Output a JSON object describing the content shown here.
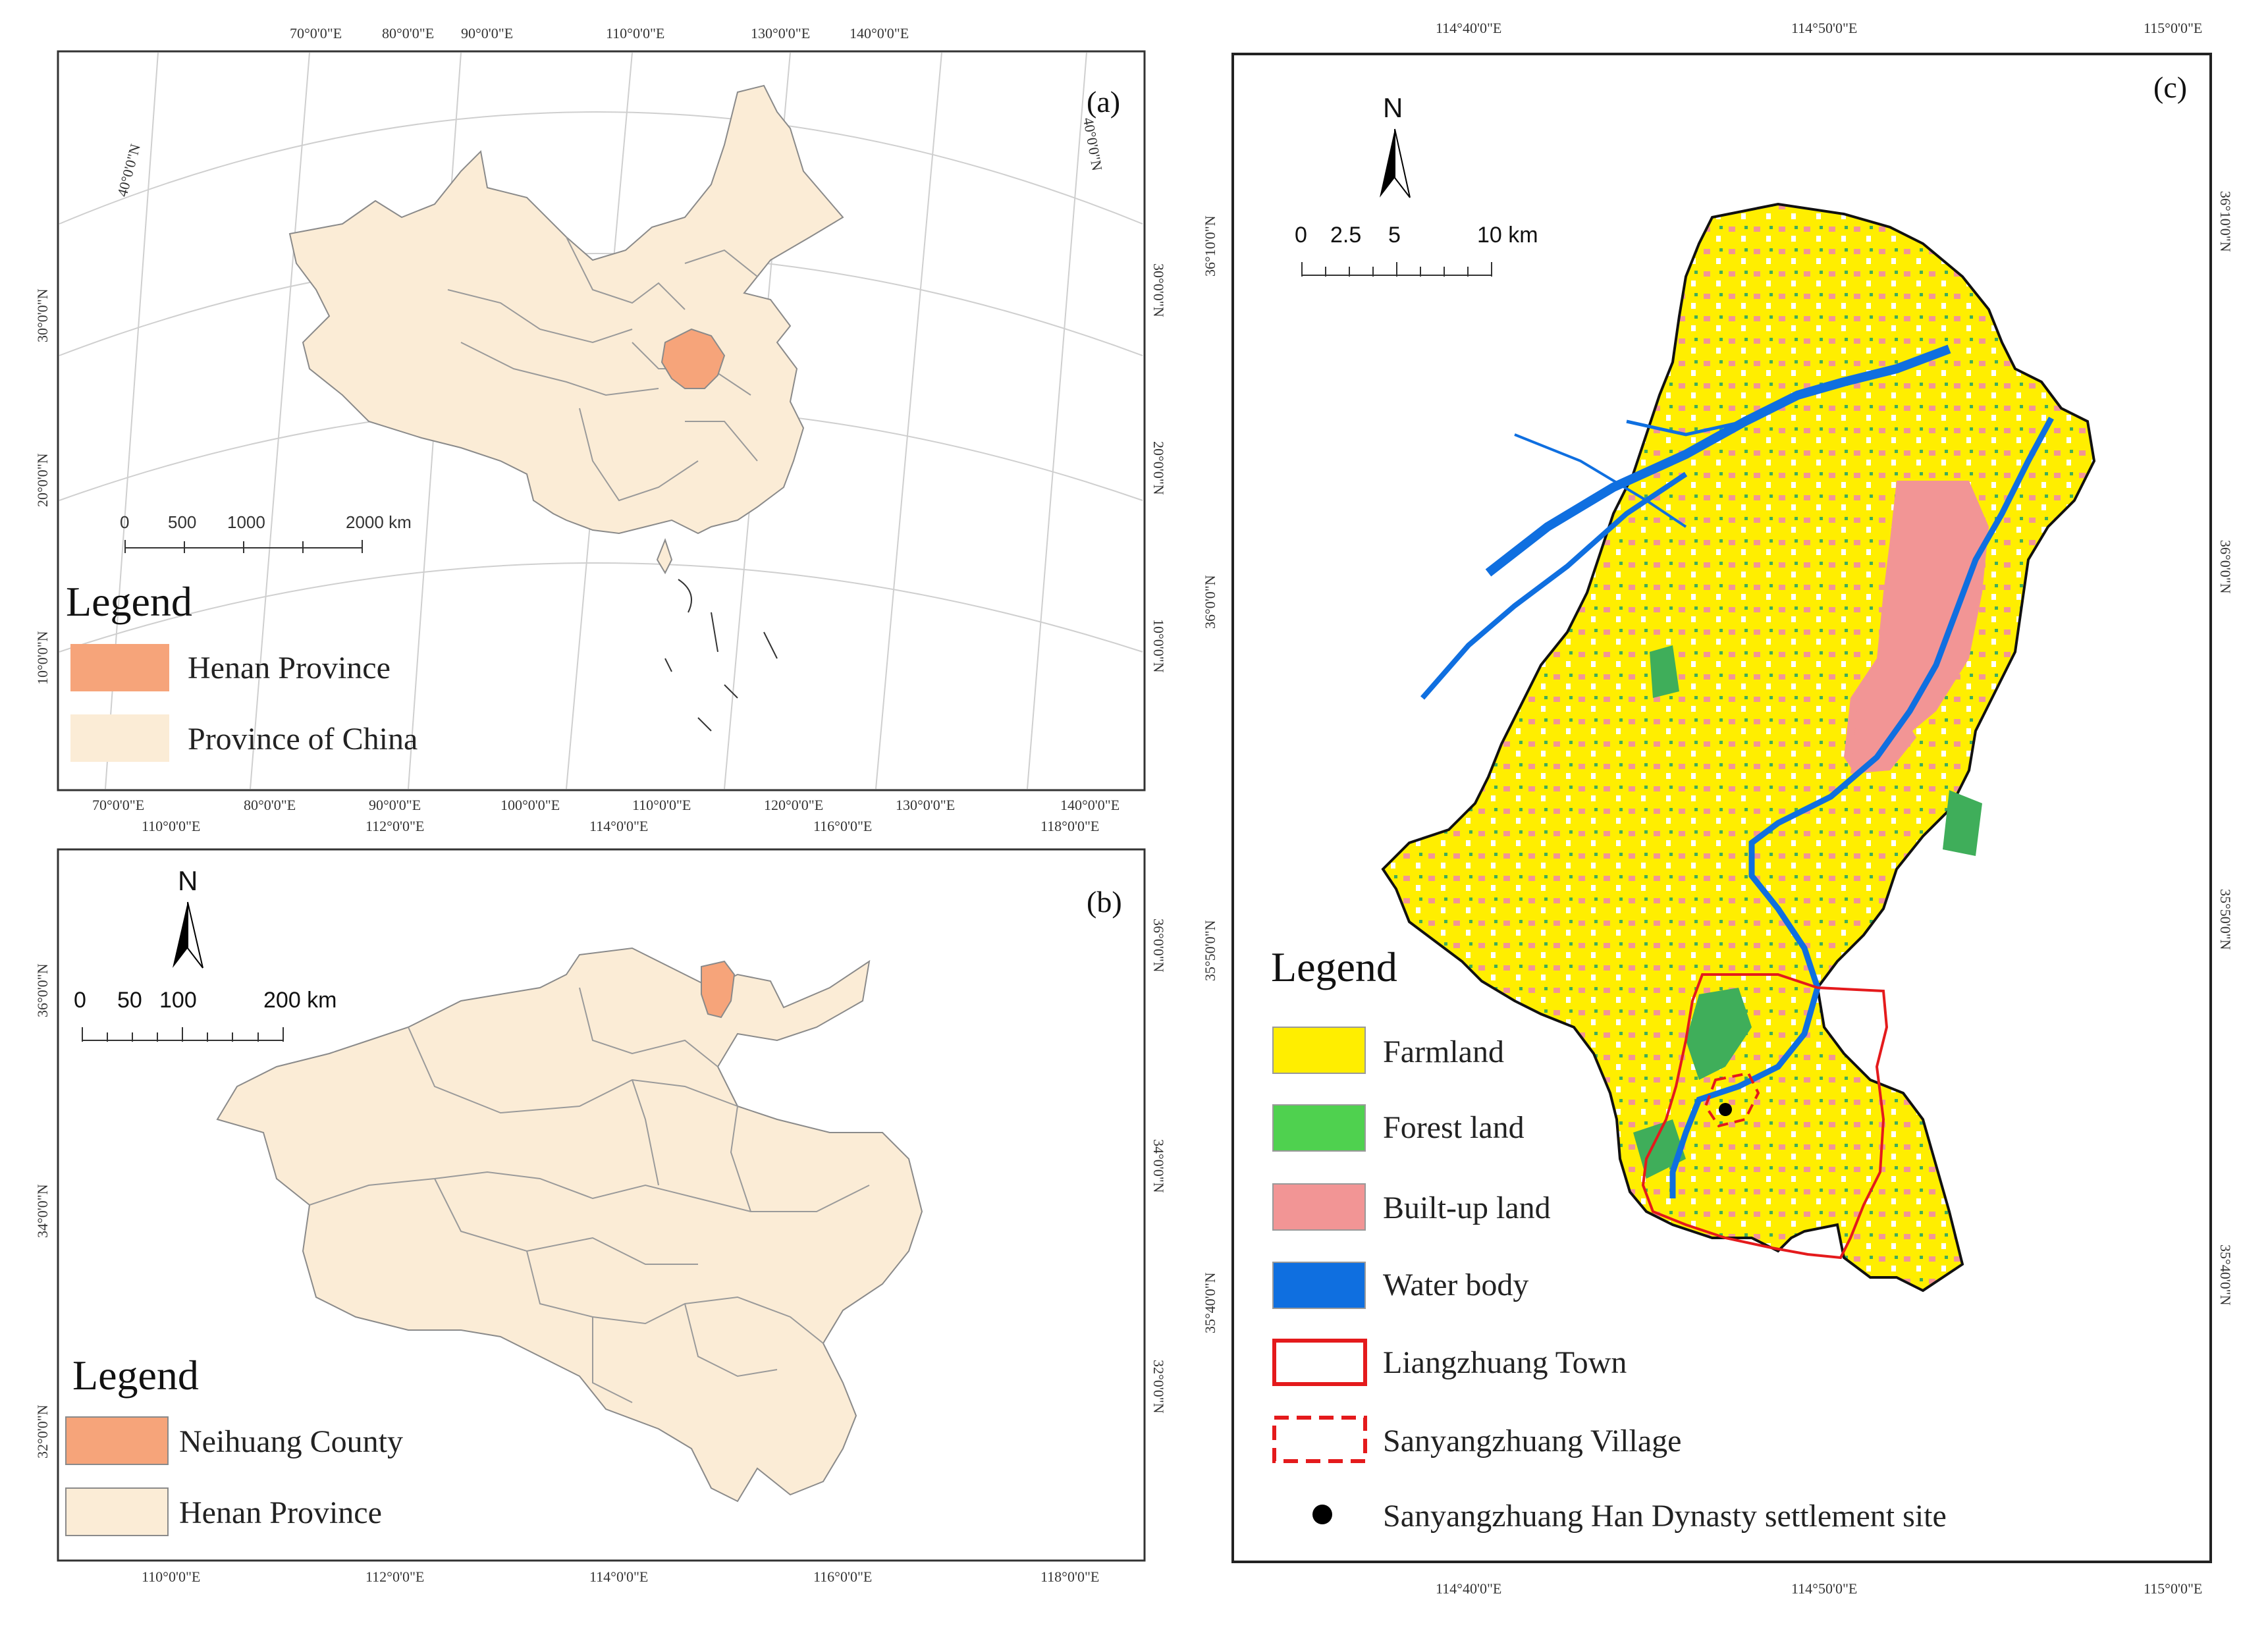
{
  "panels": {
    "a": {
      "label": "(a)",
      "top_lon_ticks": [
        "70°0'0\"E",
        "80°0'0\"E",
        "90°0'0\"E",
        "110°0'0\"E",
        "130°0'0\"E",
        "140°0'0\"E"
      ],
      "bottom_lon_ticks": [
        "70°0'0\"E",
        "80°0'0\"E",
        "90°0'0\"E",
        "100°0'0\"E",
        "110°0'0\"E",
        "120°0'0\"E",
        "130°0'0\"E",
        "140°0'0\"E"
      ],
      "left_lat_ticks": [
        "40°0'0\"N",
        "30°0'0\"N",
        "20°0'0\"N",
        "10°0'0\"N"
      ],
      "right_lat_ticks": [
        "40°0'0\"N",
        "30°0'0\"N",
        "20°0'0\"N",
        "10°0'0\"N"
      ],
      "scalebar": [
        "0",
        "500",
        "1000",
        "2000 km"
      ],
      "legend": {
        "title": "Legend",
        "items": [
          {
            "label": "Henan Province",
            "color": "#f6a47a"
          },
          {
            "label": "Province of China",
            "color": "#fbecd6"
          }
        ]
      }
    },
    "b": {
      "label": "(b)",
      "top_lon_ticks": [
        "110°0'0\"E",
        "112°0'0\"E",
        "114°0'0\"E",
        "116°0'0\"E",
        "118°0'0\"E"
      ],
      "bottom_lon_ticks": [
        "110°0'0\"E",
        "112°0'0\"E",
        "114°0'0\"E",
        "116°0'0\"E",
        "118°0'0\"E"
      ],
      "left_lat_ticks": [
        "36°0'0\"N",
        "34°0'0\"N",
        "32°0'0\"N"
      ],
      "right_lat_ticks": [
        "36°0'0\"N",
        "34°0'0\"N",
        "32°0'0\"N"
      ],
      "north": "N",
      "scalebar": [
        "0",
        "50",
        "100",
        "200 km"
      ],
      "legend": {
        "title": "Legend",
        "items": [
          {
            "label": "Neihuang County",
            "color": "#f6a47a"
          },
          {
            "label": "Henan Province",
            "color": "#fbecd6"
          }
        ]
      }
    },
    "c": {
      "label": "(c)",
      "top_lon_ticks": [
        "114°40'0\"E",
        "114°50'0\"E",
        "115°0'0\"E"
      ],
      "bottom_lon_ticks": [
        "114°40'0\"E",
        "114°50'0\"E",
        "115°0'0\"E"
      ],
      "left_lat_ticks": [
        "36°10'0\"N",
        "36°0'0\"N",
        "35°50'0\"N",
        "35°40'0\"N"
      ],
      "right_lat_ticks": [
        "36°10'0\"N",
        "36°0'0\"N",
        "35°50'0\"N",
        "35°40'0\"N"
      ],
      "north": "N",
      "scalebar": [
        "0",
        "2.5",
        "5",
        "10 km"
      ],
      "legend": {
        "title": "Legend",
        "items": [
          {
            "label": "Farmland",
            "color": "#ffee00"
          },
          {
            "label": "Forest land",
            "color": "#4fd14f"
          },
          {
            "label": "Built-up land",
            "color": "#f29595"
          },
          {
            "label": "Water body",
            "color": "#0f6fe0"
          },
          {
            "label": "Liangzhuang Town",
            "color": "#e41a1c"
          },
          {
            "label": "Sanyangzhuang Village",
            "color": "#e41a1c"
          },
          {
            "label": "Sanyangzhuang Han Dynasty settlement site",
            "color": "#000000"
          }
        ]
      }
    }
  }
}
